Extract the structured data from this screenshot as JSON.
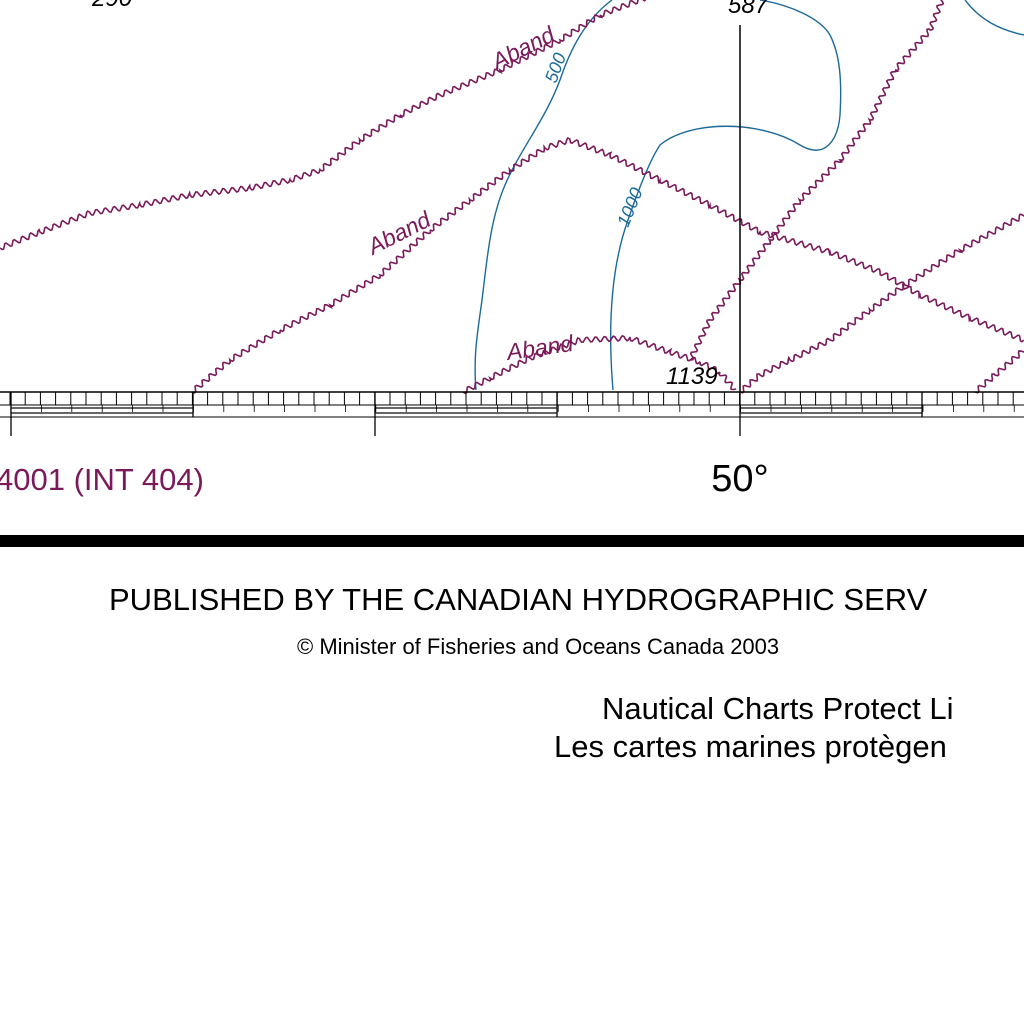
{
  "colors": {
    "cable": "#7a1a5a",
    "depth_contour": "#1b6a9a",
    "ink": "#000000",
    "paper": "#ffffff"
  },
  "map": {
    "soundings": [
      "290",
      "587",
      "1139"
    ],
    "cable_labels": [
      "Aband",
      "Aband",
      "Aband"
    ],
    "contour_labels": [
      "500",
      "1000"
    ],
    "adjoining_chart_label": "4001 (INT 404)",
    "longitude_label": "50°"
  },
  "footer": {
    "publisher": "PUBLISHED BY THE CANADIAN HYDROGRAPHIC SERV",
    "copyright": "© Minister of Fisheries and Oceans Canada 2003",
    "motto_en": "Nautical Charts Protect Li",
    "motto_fr": "Les cartes marines protègen"
  }
}
